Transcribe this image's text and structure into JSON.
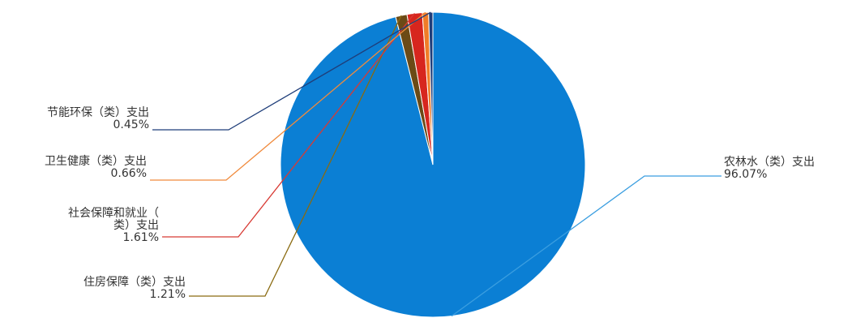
{
  "chart_data": {
    "type": "pie",
    "title": "",
    "start_angle_deg": 270,
    "direction": "clockwise",
    "slices": [
      {
        "name": "农林水（类）支出",
        "value": 96.07,
        "label_lines": [
          "农林水（类）支出",
          "96.07%"
        ],
        "color": "#0b7fd4",
        "leader_color": "#3a9ee0",
        "side": "right"
      },
      {
        "name": "住房保障（类）支出",
        "value": 1.21,
        "label_lines": [
          "住房保障（类）支出",
          "1.21%"
        ],
        "color": "#6b4a16",
        "leader_color": "#8a6a10",
        "side": "left"
      },
      {
        "name": "社会保障和就业（类）支出",
        "value": 1.61,
        "label_lines": [
          "社会保障和就业（",
          "类）支出",
          "1.61%"
        ],
        "color": "#d7261e",
        "leader_color": "#d83a34",
        "side": "left"
      },
      {
        "name": "卫生健康（类）支出",
        "value": 0.66,
        "label_lines": [
          "卫生健康（类）支出",
          "0.66%"
        ],
        "color": "#f07c28",
        "leader_color": "#f08a3c",
        "side": "left"
      },
      {
        "name": "节能环保（类）支出",
        "value": 0.45,
        "label_lines": [
          "节能环保（类）支出",
          "0.45%"
        ],
        "color": "#1f3e7a",
        "leader_color": "#1f3e7a",
        "side": "left"
      }
    ]
  }
}
